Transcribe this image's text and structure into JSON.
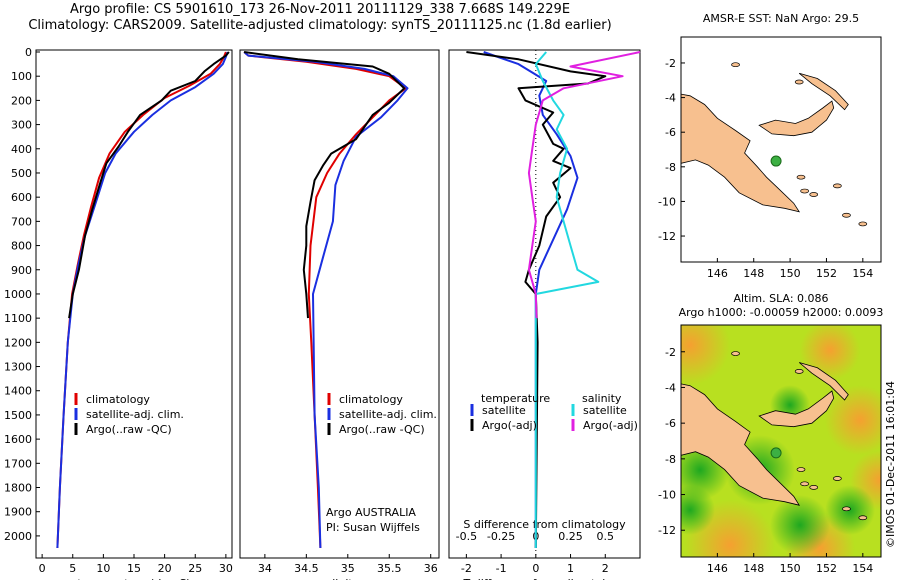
{
  "titles": {
    "line1": "Argo profile: CS 5901610_173 26-Nov-2011 20111129_338 7.668S 149.229E",
    "line2": "Climatology: CARS2009. Satellite-adjusted climatology: synTS_20111125.nc (1.8d earlier)"
  },
  "colors": {
    "climatology": "#e00000",
    "satellite": "#1a2fe0",
    "argo": "#000000",
    "sat_salinity": "#22d8e0",
    "argo_salinity": "#e020e0",
    "land": "#f7c08f",
    "sea": "#ffffff",
    "marker": "#3cb043"
  },
  "chart_data": [
    {
      "type": "line",
      "name": "temperature",
      "xlabel": "temperature (deg C)",
      "ylabel": "",
      "xlim": [
        -1,
        31
      ],
      "ylim": [
        2060,
        0
      ],
      "xticks": [
        0,
        5,
        10,
        15,
        20,
        25,
        30
      ],
      "yticks": [
        0,
        100,
        200,
        300,
        400,
        500,
        600,
        700,
        800,
        900,
        1000,
        1100,
        1200,
        1300,
        1400,
        1500,
        1600,
        1700,
        1800,
        1900,
        2000
      ],
      "legend": [
        "climatology",
        "satellite-adj. clim.",
        "Argo(..raw -QC)"
      ],
      "series": [
        {
          "name": "climatology",
          "color": "#e00000",
          "points": [
            [
              30,
              0
            ],
            [
              29.7,
              20
            ],
            [
              29,
              50
            ],
            [
              27.5,
              90
            ],
            [
              24,
              140
            ],
            [
              20,
              190
            ],
            [
              16.5,
              260
            ],
            [
              13.5,
              330
            ],
            [
              11,
              420
            ],
            [
              9.3,
              520
            ],
            [
              8,
              640
            ],
            [
              6.8,
              760
            ],
            [
              5.8,
              880
            ],
            [
              4.9,
              1000
            ],
            [
              4.2,
              1200
            ],
            [
              3.5,
              1500
            ],
            [
              2.9,
              1800
            ],
            [
              2.5,
              2050
            ]
          ]
        },
        {
          "name": "satellite-adj. clim.",
          "color": "#1a2fe0",
          "points": [
            [
              30.3,
              0
            ],
            [
              30,
              20
            ],
            [
              29.5,
              50
            ],
            [
              28,
              90
            ],
            [
              25,
              145
            ],
            [
              21,
              200
            ],
            [
              18,
              260
            ],
            [
              15,
              330
            ],
            [
              12,
              420
            ],
            [
              10.3,
              500
            ],
            [
              8.8,
              620
            ],
            [
              7,
              760
            ],
            [
              5.9,
              880
            ],
            [
              5,
              1000
            ],
            [
              4.2,
              1200
            ],
            [
              3.5,
              1500
            ],
            [
              2.9,
              1800
            ],
            [
              2.5,
              2050
            ]
          ]
        },
        {
          "name": "Argo(..raw -QC)",
          "color": "#000000",
          "points": [
            [
              30.5,
              0
            ],
            [
              30,
              15
            ],
            [
              28,
              50
            ],
            [
              26.5,
              80
            ],
            [
              25,
              120
            ],
            [
              21,
              160
            ],
            [
              19.5,
              200
            ],
            [
              16,
              260
            ],
            [
              14,
              330
            ],
            [
              12.5,
              390
            ],
            [
              10.5,
              460
            ],
            [
              9.5,
              540
            ],
            [
              8.2,
              650
            ],
            [
              7,
              760
            ],
            [
              6,
              900
            ],
            [
              5,
              1000
            ],
            [
              4.4,
              1100
            ]
          ]
        }
      ]
    },
    {
      "type": "line",
      "name": "salinity",
      "xlabel": "salinity",
      "ylabel": "",
      "xlim": [
        33.7,
        36.1
      ],
      "ylim": [
        2060,
        0
      ],
      "xticks": [
        34,
        34.5,
        35,
        35.5,
        36
      ],
      "legend": [
        "climatology",
        "satellite-adj. clim.",
        "Argo(..raw -QC)"
      ],
      "annotation": [
        "Argo AUSTRALIA",
        "PI: Susan Wijffels"
      ],
      "series": [
        {
          "name": "climatology",
          "color": "#e00000",
          "points": [
            [
              33.75,
              0
            ],
            [
              33.8,
              15
            ],
            [
              34.5,
              40
            ],
            [
              35.1,
              70
            ],
            [
              35.5,
              100
            ],
            [
              35.7,
              150
            ],
            [
              35.5,
              200
            ],
            [
              35.3,
              270
            ],
            [
              35.1,
              340
            ],
            [
              34.9,
              420
            ],
            [
              34.75,
              500
            ],
            [
              34.62,
              600
            ],
            [
              34.55,
              800
            ],
            [
              34.53,
              1000
            ],
            [
              34.56,
              1200
            ],
            [
              34.6,
              1500
            ],
            [
              34.64,
              1800
            ],
            [
              34.67,
              2050
            ]
          ]
        },
        {
          "name": "satellite-adj. clim.",
          "color": "#1a2fe0",
          "points": [
            [
              33.75,
              0
            ],
            [
              33.8,
              15
            ],
            [
              34.6,
              40
            ],
            [
              35.2,
              70
            ],
            [
              35.55,
              100
            ],
            [
              35.72,
              150
            ],
            [
              35.6,
              200
            ],
            [
              35.4,
              270
            ],
            [
              35.1,
              350
            ],
            [
              34.95,
              450
            ],
            [
              34.85,
              550
            ],
            [
              34.82,
              700
            ],
            [
              34.7,
              850
            ],
            [
              34.58,
              1000
            ],
            [
              34.6,
              1500
            ],
            [
              34.65,
              1800
            ],
            [
              34.67,
              2050
            ]
          ]
        },
        {
          "name": "Argo(..raw -QC)",
          "color": "#000000",
          "points": [
            [
              33.75,
              0
            ],
            [
              34.4,
              30
            ],
            [
              35.3,
              60
            ],
            [
              35.5,
              90
            ],
            [
              35.68,
              150
            ],
            [
              35.5,
              210
            ],
            [
              35.3,
              260
            ],
            [
              35.2,
              310
            ],
            [
              35.1,
              360
            ],
            [
              34.8,
              420
            ],
            [
              34.7,
              470
            ],
            [
              34.6,
              530
            ],
            [
              34.55,
              620
            ],
            [
              34.5,
              720
            ],
            [
              34.5,
              800
            ],
            [
              34.47,
              900
            ],
            [
              34.5,
              1000
            ],
            [
              34.52,
              1100
            ]
          ]
        }
      ]
    },
    {
      "type": "line",
      "name": "difference",
      "xlabel": "T difference from climatology",
      "x2label": "S difference from climatology",
      "xlim": [
        -2.5,
        3
      ],
      "ylim": [
        2060,
        0
      ],
      "xticks": [
        "-2",
        "-1",
        "0",
        "1",
        "2"
      ],
      "x2ticks": [
        "-0.5",
        "-0.25",
        "0",
        "0.25",
        "0.5"
      ],
      "legend_titles": [
        "temperature",
        "salinity"
      ],
      "legend": [
        "satellite",
        "Argo(-adj)",
        "satellite",
        "Argo(-adj)"
      ],
      "series": [
        {
          "name": "temperature satellite",
          "color": "#1a2fe0",
          "points": [
            [
              -1.5,
              0
            ],
            [
              -0.5,
              50
            ],
            [
              0.3,
              120
            ],
            [
              0.1,
              180
            ],
            [
              0.2,
              260
            ],
            [
              0.6,
              340
            ],
            [
              1.0,
              430
            ],
            [
              1.2,
              520
            ],
            [
              0.9,
              650
            ],
            [
              0.1,
              900
            ],
            [
              0,
              1000
            ],
            [
              0,
              2050
            ]
          ]
        },
        {
          "name": "temperature Argo(-adj)",
          "color": "#000000",
          "points": [
            [
              -2,
              0
            ],
            [
              -0.5,
              30
            ],
            [
              1,
              80
            ],
            [
              2,
              100
            ],
            [
              1.5,
              130
            ],
            [
              -0.5,
              150
            ],
            [
              -0.3,
              200
            ],
            [
              0.5,
              250
            ],
            [
              0.2,
              300
            ],
            [
              0.5,
              380
            ],
            [
              0.8,
              400
            ],
            [
              0.5,
              450
            ],
            [
              1.0,
              480
            ],
            [
              0.5,
              540
            ],
            [
              0.7,
              600
            ],
            [
              0.3,
              680
            ],
            [
              0.1,
              800
            ],
            [
              -0.2,
              900
            ],
            [
              -0.3,
              950
            ],
            [
              0,
              1000
            ],
            [
              0.05,
              1200
            ],
            [
              0,
              2050
            ]
          ]
        },
        {
          "name": "salinity satellite",
          "color": "#22d8e0",
          "points": [
            [
              0.3,
              0
            ],
            [
              0,
              50
            ],
            [
              0.2,
              120
            ],
            [
              0.5,
              200
            ],
            [
              0.8,
              260
            ],
            [
              0.6,
              320
            ],
            [
              0.9,
              400
            ],
            [
              0.7,
              500
            ],
            [
              0.6,
              600
            ],
            [
              0.8,
              700
            ],
            [
              1.0,
              800
            ],
            [
              1.2,
              900
            ],
            [
              1.8,
              950
            ],
            [
              0,
              1000
            ],
            [
              0,
              2050
            ]
          ]
        },
        {
          "name": "salinity Argo(-adj)",
          "color": "#e020e0",
          "points": [
            [
              3,
              0
            ],
            [
              1,
              60
            ],
            [
              2.5,
              100
            ],
            [
              0.8,
              150
            ],
            [
              0.2,
              200
            ],
            [
              0,
              300
            ],
            [
              -0.1,
              400
            ],
            [
              -0.2,
              500
            ],
            [
              -0.1,
              600
            ],
            [
              0,
              700
            ],
            [
              -0.1,
              800
            ],
            [
              -0.2,
              900
            ],
            [
              0,
              1000
            ],
            [
              0.02,
              1100
            ]
          ]
        }
      ]
    }
  ],
  "maps": [
    {
      "title_lines": [
        "AMSR-E SST: NaN Argo: 29.5"
      ],
      "xticks": [
        "146",
        "148",
        "150",
        "152",
        "154"
      ],
      "yticks": [
        "-2",
        "-4",
        "-6",
        "-8",
        "-10",
        "-12"
      ],
      "lon": [
        144,
        155
      ],
      "lat": [
        -13.5,
        -0.5
      ],
      "argo_position": {
        "lon": 149.229,
        "lat": -7.668
      },
      "background": "white"
    },
    {
      "title_lines": [
        "Altim. SLA: 0.086",
        "Argo h1000: -0.00059 h2000: 0.0093"
      ],
      "xticks": [
        "146",
        "148",
        "150",
        "152",
        "154"
      ],
      "yticks": [
        "-2",
        "-4",
        "-6",
        "-8",
        "-10",
        "-12"
      ],
      "lon": [
        144,
        155
      ],
      "lat": [
        -13.5,
        -0.5
      ],
      "argo_position": {
        "lon": 149.229,
        "lat": -7.668
      },
      "background": "sla"
    }
  ],
  "credit": "©IMOS 01-Dec-2011 16:01:04"
}
